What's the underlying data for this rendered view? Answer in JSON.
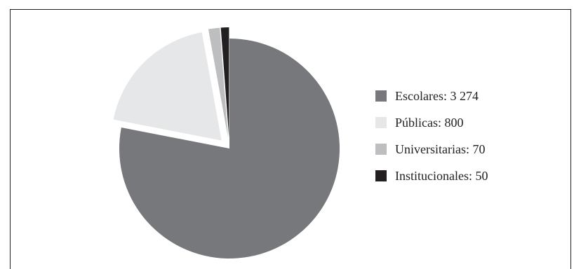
{
  "chart_data": {
    "type": "pie",
    "title": "",
    "slices": [
      {
        "label": "Escolares: 3 274",
        "value": 3274,
        "color": "#77787b"
      },
      {
        "label": "Públicas: 800",
        "value": 800,
        "color": "#e6e7e8"
      },
      {
        "label": "Universitarias: 70",
        "value": 70,
        "color": "#bdbec0"
      },
      {
        "label": "Institucionales: 50",
        "value": 50,
        "color": "#231f20"
      }
    ],
    "exploded": true,
    "legend_position": "right"
  }
}
